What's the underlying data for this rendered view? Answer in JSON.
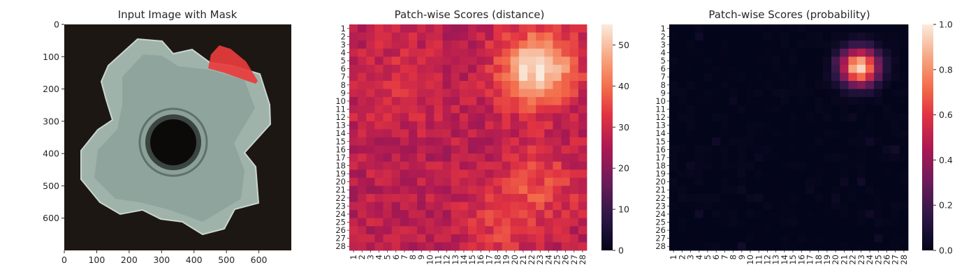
{
  "chart_data": [
    {
      "type": "image",
      "title": "Input Image with Mask",
      "xlim": [
        0,
        700
      ],
      "ylim": [
        700,
        0
      ],
      "xticks": [
        0,
        100,
        200,
        300,
        400,
        500,
        600
      ],
      "yticks": [
        0,
        100,
        200,
        300,
        400,
        500,
        600
      ],
      "image_colors": {
        "background": "#1d1714",
        "object": "#9fb3ab",
        "hole": "#0c0a09",
        "mask": "#e83c3c"
      }
    },
    {
      "type": "heatmap",
      "title": "Patch-wise Scores (distance)",
      "rows": [
        "1",
        "2",
        "3",
        "4",
        "5",
        "6",
        "7",
        "8",
        "9",
        "10",
        "11",
        "12",
        "13",
        "14",
        "15",
        "16",
        "17",
        "18",
        "19",
        "20",
        "21",
        "22",
        "23",
        "24",
        "25",
        "26",
        "27",
        "28"
      ],
      "cols": [
        "1",
        "2",
        "3",
        "4",
        "5",
        "6",
        "7",
        "8",
        "9",
        "10",
        "11",
        "12",
        "13",
        "14",
        "15",
        "16",
        "17",
        "18",
        "19",
        "20",
        "21",
        "22",
        "23",
        "24",
        "25",
        "26",
        "27",
        "28"
      ],
      "vmin": 0,
      "vmax": 55,
      "colorbar_ticks": [
        0,
        10,
        20,
        30,
        40,
        50
      ],
      "baseline": 27,
      "hotspots": [
        {
          "row": 6.0,
          "col": 22.7,
          "amplitude": 28,
          "radius": 3.0
        },
        {
          "row": 20.5,
          "col": 22.5,
          "amplitude": 8,
          "radius": 3.5
        },
        {
          "row": 25.0,
          "col": 18.0,
          "amplitude": 6,
          "radius": 3.0
        },
        {
          "row": 8.0,
          "col": 6.5,
          "amplitude": 4,
          "radius": 4.0
        }
      ]
    },
    {
      "type": "heatmap",
      "title": "Patch-wise Scores (probability)",
      "rows": [
        "1",
        "2",
        "3",
        "4",
        "5",
        "6",
        "7",
        "8",
        "9",
        "10",
        "11",
        "12",
        "13",
        "14",
        "15",
        "16",
        "17",
        "18",
        "19",
        "20",
        "21",
        "22",
        "23",
        "24",
        "25",
        "26",
        "27",
        "28"
      ],
      "cols": [
        "1",
        "2",
        "3",
        "4",
        "5",
        "6",
        "7",
        "8",
        "9",
        "10",
        "11",
        "12",
        "13",
        "14",
        "15",
        "16",
        "17",
        "18",
        "19",
        "20",
        "21",
        "22",
        "23",
        "24",
        "25",
        "26",
        "27",
        "28"
      ],
      "vmin": 0,
      "vmax": 1,
      "colorbar_ticks": [
        0.0,
        0.2,
        0.4,
        0.6,
        0.8,
        1.0
      ],
      "colorbar_labels": [
        "0.0",
        "0.2",
        "0.4",
        "0.6",
        "0.8",
        "1.0"
      ],
      "hotspots": [
        {
          "row": 5.8,
          "col": 22.8,
          "amplitude": 0.97,
          "radius": 1.55
        }
      ]
    }
  ]
}
